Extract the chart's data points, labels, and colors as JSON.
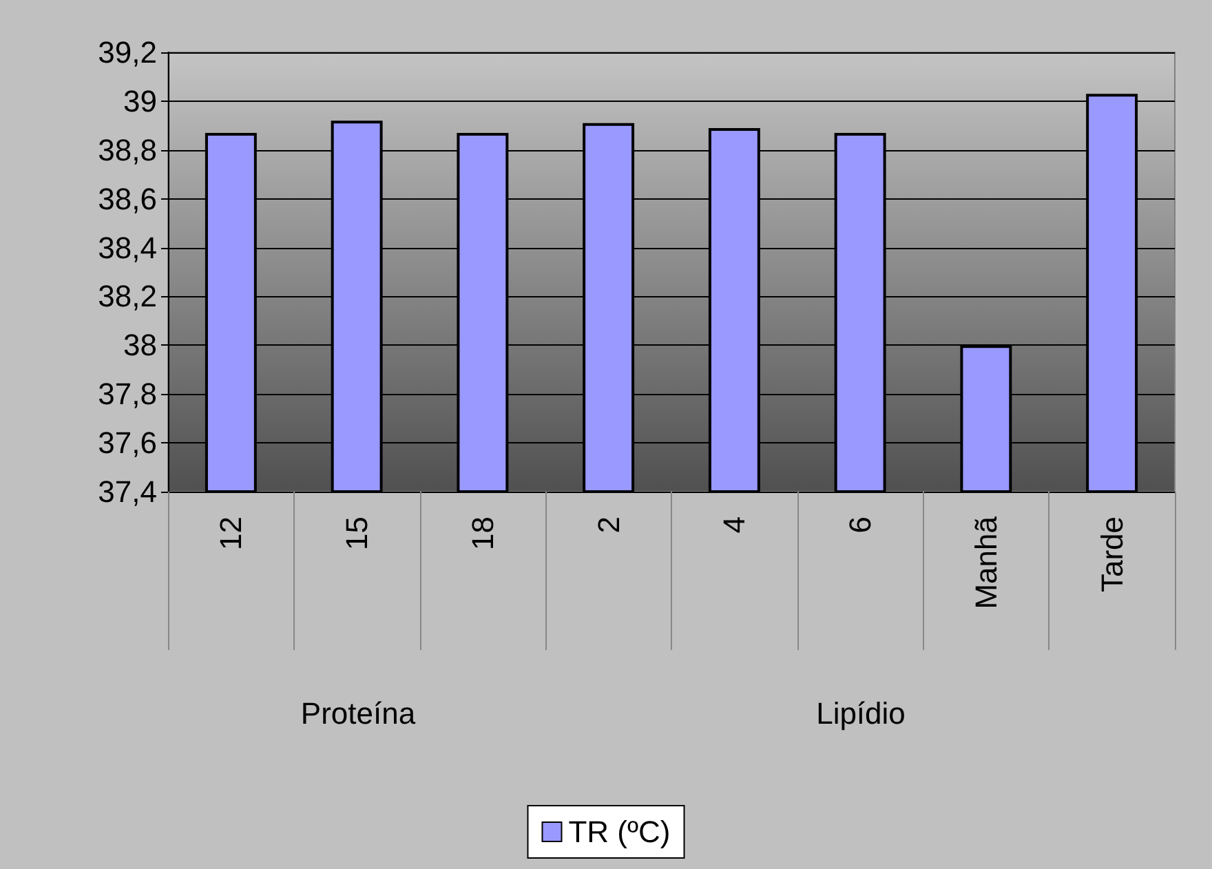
{
  "chart_data": {
    "type": "bar",
    "categories": [
      "12",
      "15",
      "18",
      "2",
      "4",
      "6",
      "Manhã",
      "Tarde"
    ],
    "series": [
      {
        "name": "TR (ºC)",
        "color": "#9999ff",
        "values": [
          38.87,
          38.92,
          38.87,
          38.91,
          38.89,
          38.87,
          38.0,
          39.03
        ]
      }
    ],
    "ylim": [
      37.4,
      39.2
    ],
    "yticks": [
      {
        "value": 37.4,
        "label": "37,4"
      },
      {
        "value": 37.6,
        "label": "37,6"
      },
      {
        "value": 37.8,
        "label": "37,8"
      },
      {
        "value": 38,
        "label": "38"
      },
      {
        "value": 38.2,
        "label": "38,2"
      },
      {
        "value": 38.4,
        "label": "38,4"
      },
      {
        "value": 38.6,
        "label": "38,6"
      },
      {
        "value": 38.8,
        "label": "38,8"
      },
      {
        "value": 39,
        "label": "39"
      },
      {
        "value": 39.2,
        "label": "39,2"
      }
    ],
    "grid": "y",
    "legend": "bottom",
    "annotations": [
      "Proteína",
      "Lipídio"
    ]
  }
}
